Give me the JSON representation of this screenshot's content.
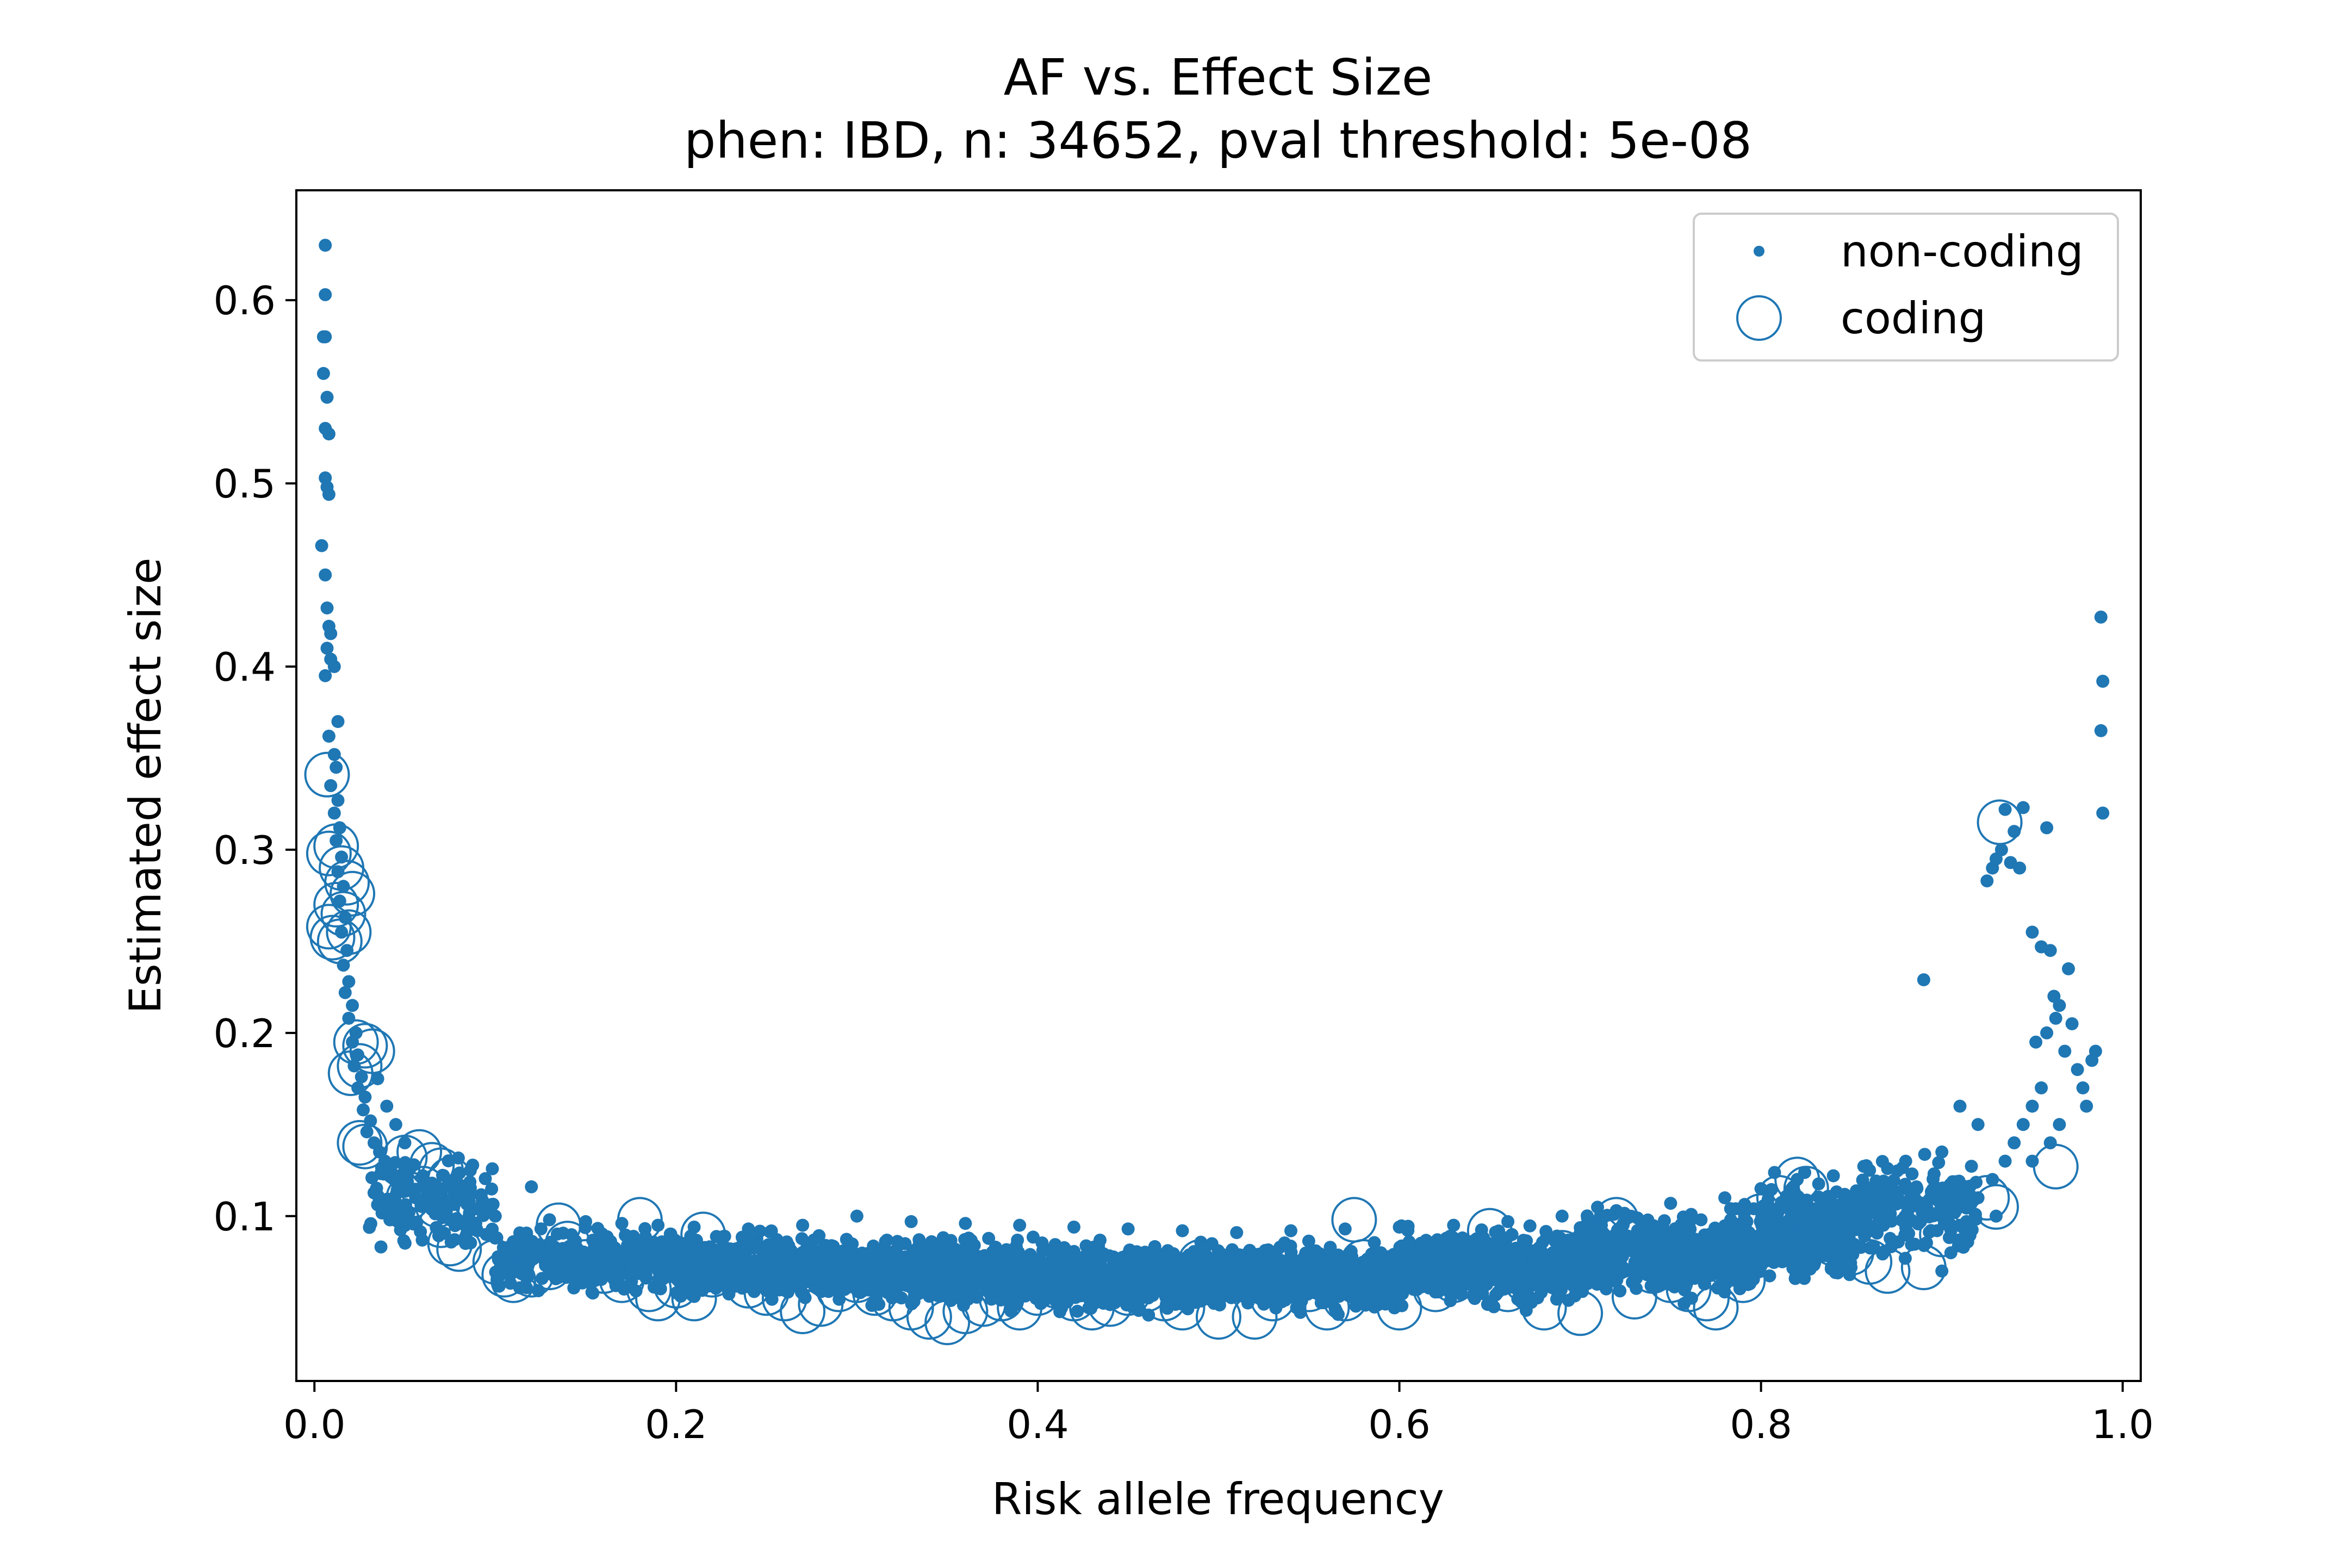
{
  "chart_data": {
    "type": "scatter",
    "title": "AF vs. Effect Size",
    "subtitle": "phen: IBD, n: 34652, pval threshold: 5e-08",
    "xlabel": "Risk allele frequency",
    "ylabel": "Estimated effect size",
    "xlim": [
      -0.01,
      1.01
    ],
    "ylim": [
      0.01,
      0.66
    ],
    "xticks": [
      0.0,
      0.2,
      0.4,
      0.6,
      0.8,
      1.0
    ],
    "xtick_labels": [
      "0.0",
      "0.2",
      "0.4",
      "0.6",
      "0.8",
      "1.0"
    ],
    "yticks": [
      0.1,
      0.2,
      0.3,
      0.4,
      0.5,
      0.6
    ],
    "ytick_labels": [
      "0.1",
      "0.2",
      "0.3",
      "0.4",
      "0.5",
      "0.6"
    ],
    "grid": false,
    "legend_position": "top-right",
    "color": "#1f77b4",
    "series": [
      {
        "name": "non-coding",
        "marker": "dot",
        "points": [
          [
            0.006,
            0.63
          ],
          [
            0.006,
            0.603
          ],
          [
            0.005,
            0.58
          ],
          [
            0.006,
            0.58
          ],
          [
            0.005,
            0.56
          ],
          [
            0.007,
            0.547
          ],
          [
            0.006,
            0.53
          ],
          [
            0.008,
            0.527
          ],
          [
            0.006,
            0.503
          ],
          [
            0.007,
            0.498
          ],
          [
            0.008,
            0.494
          ],
          [
            0.004,
            0.466
          ],
          [
            0.006,
            0.45
          ],
          [
            0.007,
            0.432
          ],
          [
            0.008,
            0.422
          ],
          [
            0.009,
            0.418
          ],
          [
            0.007,
            0.41
          ],
          [
            0.009,
            0.404
          ],
          [
            0.011,
            0.4
          ],
          [
            0.006,
            0.395
          ],
          [
            0.013,
            0.37
          ],
          [
            0.008,
            0.362
          ],
          [
            0.011,
            0.352
          ],
          [
            0.012,
            0.345
          ],
          [
            0.009,
            0.335
          ],
          [
            0.013,
            0.327
          ],
          [
            0.011,
            0.32
          ],
          [
            0.014,
            0.312
          ],
          [
            0.012,
            0.305
          ],
          [
            0.015,
            0.296
          ],
          [
            0.013,
            0.288
          ],
          [
            0.016,
            0.28
          ],
          [
            0.014,
            0.272
          ],
          [
            0.017,
            0.263
          ],
          [
            0.015,
            0.255
          ],
          [
            0.018,
            0.245
          ],
          [
            0.016,
            0.237
          ],
          [
            0.019,
            0.228
          ],
          [
            0.017,
            0.222
          ],
          [
            0.021,
            0.215
          ],
          [
            0.019,
            0.208
          ],
          [
            0.023,
            0.2
          ],
          [
            0.021,
            0.195
          ],
          [
            0.024,
            0.188
          ],
          [
            0.022,
            0.182
          ],
          [
            0.026,
            0.176
          ],
          [
            0.024,
            0.17
          ],
          [
            0.028,
            0.165
          ],
          [
            0.027,
            0.158
          ],
          [
            0.031,
            0.152
          ],
          [
            0.029,
            0.146
          ],
          [
            0.033,
            0.14
          ],
          [
            0.036,
            0.135
          ],
          [
            0.039,
            0.13
          ],
          [
            0.042,
            0.126
          ],
          [
            0.045,
            0.122
          ],
          [
            0.048,
            0.118
          ],
          [
            0.052,
            0.114
          ],
          [
            0.056,
            0.11
          ],
          [
            0.06,
            0.107
          ],
          [
            0.065,
            0.104
          ],
          [
            0.07,
            0.101
          ],
          [
            0.075,
            0.098
          ],
          [
            0.08,
            0.096
          ],
          [
            0.085,
            0.094
          ],
          [
            0.09,
            0.092
          ],
          [
            0.095,
            0.09
          ],
          [
            0.1,
            0.088
          ],
          [
            0.11,
            0.086
          ],
          [
            0.12,
            0.116
          ],
          [
            0.035,
            0.175
          ],
          [
            0.04,
            0.16
          ],
          [
            0.045,
            0.15
          ],
          [
            0.05,
            0.14
          ],
          [
            0.055,
            0.128
          ],
          [
            0.06,
            0.122
          ],
          [
            0.065,
            0.118
          ],
          [
            0.07,
            0.115
          ],
          [
            0.08,
            0.11
          ],
          [
            0.09,
            0.104
          ],
          [
            0.1,
            0.1
          ],
          [
            0.13,
            0.098
          ],
          [
            0.15,
            0.097
          ],
          [
            0.17,
            0.096
          ],
          [
            0.19,
            0.095
          ],
          [
            0.21,
            0.094
          ],
          [
            0.24,
            0.093
          ],
          [
            0.27,
            0.095
          ],
          [
            0.3,
            0.1
          ],
          [
            0.33,
            0.097
          ],
          [
            0.36,
            0.096
          ],
          [
            0.39,
            0.095
          ],
          [
            0.42,
            0.094
          ],
          [
            0.45,
            0.093
          ],
          [
            0.48,
            0.092
          ],
          [
            0.51,
            0.091
          ],
          [
            0.54,
            0.092
          ],
          [
            0.57,
            0.093
          ],
          [
            0.6,
            0.094
          ],
          [
            0.63,
            0.095
          ],
          [
            0.66,
            0.097
          ],
          [
            0.69,
            0.1
          ],
          [
            0.72,
            0.103
          ],
          [
            0.75,
            0.107
          ],
          [
            0.78,
            0.11
          ],
          [
            0.8,
            0.115
          ],
          [
            0.82,
            0.12
          ],
          [
            0.84,
            0.122
          ],
          [
            0.86,
            0.125
          ],
          [
            0.88,
            0.13
          ],
          [
            0.89,
            0.229
          ],
          [
            0.9,
            0.135
          ],
          [
            0.91,
            0.16
          ],
          [
            0.92,
            0.15
          ],
          [
            0.925,
            0.283
          ],
          [
            0.928,
            0.29
          ],
          [
            0.93,
            0.295
          ],
          [
            0.933,
            0.3
          ],
          [
            0.935,
            0.322
          ],
          [
            0.938,
            0.293
          ],
          [
            0.94,
            0.31
          ],
          [
            0.945,
            0.323
          ],
          [
            0.943,
            0.29
          ],
          [
            0.95,
            0.255
          ],
          [
            0.955,
            0.247
          ],
          [
            0.958,
            0.312
          ],
          [
            0.96,
            0.245
          ],
          [
            0.962,
            0.22
          ],
          [
            0.965,
            0.215
          ],
          [
            0.958,
            0.2
          ],
          [
            0.952,
            0.195
          ],
          [
            0.963,
            0.208
          ],
          [
            0.968,
            0.19
          ],
          [
            0.97,
            0.235
          ],
          [
            0.972,
            0.205
          ],
          [
            0.975,
            0.18
          ],
          [
            0.978,
            0.17
          ],
          [
            0.98,
            0.16
          ],
          [
            0.983,
            0.185
          ],
          [
            0.985,
            0.19
          ],
          [
            0.988,
            0.427
          ],
          [
            0.989,
            0.392
          ],
          [
            0.988,
            0.365
          ],
          [
            0.989,
            0.32
          ],
          [
            0.94,
            0.14
          ],
          [
            0.945,
            0.15
          ],
          [
            0.95,
            0.16
          ],
          [
            0.955,
            0.17
          ],
          [
            0.935,
            0.13
          ],
          [
            0.928,
            0.12
          ],
          [
            0.92,
            0.11
          ],
          [
            0.915,
            0.105
          ],
          [
            0.91,
            0.095
          ],
          [
            0.905,
            0.08
          ],
          [
            0.9,
            0.07
          ],
          [
            0.95,
            0.13
          ],
          [
            0.96,
            0.14
          ],
          [
            0.965,
            0.15
          ],
          [
            0.93,
            0.1
          ]
        ]
      },
      {
        "name": "coding",
        "marker": "open-circle",
        "points": [
          [
            0.007,
            0.341
          ],
          [
            0.008,
            0.298
          ],
          [
            0.012,
            0.302
          ],
          [
            0.015,
            0.29
          ],
          [
            0.018,
            0.282
          ],
          [
            0.021,
            0.276
          ],
          [
            0.012,
            0.27
          ],
          [
            0.016,
            0.265
          ],
          [
            0.008,
            0.258
          ],
          [
            0.01,
            0.252
          ],
          [
            0.014,
            0.25
          ],
          [
            0.019,
            0.255
          ],
          [
            0.023,
            0.195
          ],
          [
            0.028,
            0.193
          ],
          [
            0.032,
            0.19
          ],
          [
            0.025,
            0.182
          ],
          [
            0.02,
            0.178
          ],
          [
            0.025,
            0.14
          ],
          [
            0.028,
            0.138
          ],
          [
            0.05,
            0.132
          ],
          [
            0.058,
            0.135
          ],
          [
            0.065,
            0.128
          ],
          [
            0.07,
            0.125
          ],
          [
            0.075,
            0.12
          ],
          [
            0.06,
            0.115
          ],
          [
            0.052,
            0.11
          ],
          [
            0.068,
            0.106
          ],
          [
            0.07,
            0.095
          ],
          [
            0.075,
            0.085
          ],
          [
            0.08,
            0.082
          ],
          [
            0.1,
            0.075
          ],
          [
            0.105,
            0.068
          ],
          [
            0.11,
            0.065
          ],
          [
            0.12,
            0.068
          ],
          [
            0.13,
            0.072
          ],
          [
            0.135,
            0.095
          ],
          [
            0.14,
            0.085
          ],
          [
            0.15,
            0.075
          ],
          [
            0.16,
            0.07
          ],
          [
            0.17,
            0.065
          ],
          [
            0.18,
            0.098
          ],
          [
            0.185,
            0.06
          ],
          [
            0.19,
            0.055
          ],
          [
            0.2,
            0.062
          ],
          [
            0.21,
            0.055
          ],
          [
            0.215,
            0.09
          ],
          [
            0.22,
            0.068
          ],
          [
            0.24,
            0.062
          ],
          [
            0.25,
            0.058
          ],
          [
            0.26,
            0.055
          ],
          [
            0.27,
            0.048
          ],
          [
            0.28,
            0.052
          ],
          [
            0.29,
            0.06
          ],
          [
            0.3,
            0.065
          ],
          [
            0.31,
            0.058
          ],
          [
            0.32,
            0.055
          ],
          [
            0.33,
            0.05
          ],
          [
            0.34,
            0.045
          ],
          [
            0.35,
            0.042
          ],
          [
            0.36,
            0.048
          ],
          [
            0.37,
            0.052
          ],
          [
            0.38,
            0.055
          ],
          [
            0.39,
            0.05
          ],
          [
            0.4,
            0.058
          ],
          [
            0.41,
            0.062
          ],
          [
            0.42,
            0.055
          ],
          [
            0.43,
            0.05
          ],
          [
            0.44,
            0.052
          ],
          [
            0.45,
            0.058
          ],
          [
            0.46,
            0.06
          ],
          [
            0.47,
            0.055
          ],
          [
            0.48,
            0.05
          ],
          [
            0.49,
            0.075
          ],
          [
            0.5,
            0.045
          ],
          [
            0.505,
            0.068
          ],
          [
            0.51,
            0.07
          ],
          [
            0.52,
            0.045
          ],
          [
            0.53,
            0.055
          ],
          [
            0.54,
            0.065
          ],
          [
            0.55,
            0.06
          ],
          [
            0.56,
            0.05
          ],
          [
            0.57,
            0.055
          ],
          [
            0.575,
            0.098
          ],
          [
            0.58,
            0.075
          ],
          [
            0.59,
            0.065
          ],
          [
            0.6,
            0.05
          ],
          [
            0.61,
            0.07
          ],
          [
            0.62,
            0.06
          ],
          [
            0.63,
            0.065
          ],
          [
            0.64,
            0.07
          ],
          [
            0.65,
            0.092
          ],
          [
            0.66,
            0.06
          ],
          [
            0.67,
            0.065
          ],
          [
            0.68,
            0.05
          ],
          [
            0.69,
            0.08
          ],
          [
            0.7,
            0.047
          ],
          [
            0.71,
            0.088
          ],
          [
            0.72,
            0.098
          ],
          [
            0.73,
            0.056
          ],
          [
            0.74,
            0.07
          ],
          [
            0.75,
            0.065
          ],
          [
            0.76,
            0.06
          ],
          [
            0.77,
            0.055
          ],
          [
            0.775,
            0.05
          ],
          [
            0.78,
            0.075
          ],
          [
            0.79,
            0.065
          ],
          [
            0.8,
            0.1
          ],
          [
            0.81,
            0.11
          ],
          [
            0.82,
            0.12
          ],
          [
            0.825,
            0.115
          ],
          [
            0.83,
            0.095
          ],
          [
            0.84,
            0.085
          ],
          [
            0.85,
            0.08
          ],
          [
            0.86,
            0.075
          ],
          [
            0.87,
            0.07
          ],
          [
            0.89,
            0.072
          ],
          [
            0.9,
            0.09
          ],
          [
            0.925,
            0.11
          ],
          [
            0.932,
            0.315
          ],
          [
            0.93,
            0.105
          ],
          [
            0.963,
            0.127
          ]
        ]
      }
    ],
    "dense_band": [
      {
        "x0": 0.03,
        "x1": 0.1,
        "ymin": 0.075,
        "ymax": 0.14,
        "count": 140
      },
      {
        "x0": 0.1,
        "x1": 0.2,
        "ymin": 0.055,
        "ymax": 0.098,
        "count": 320
      },
      {
        "x0": 0.2,
        "x1": 0.3,
        "ymin": 0.048,
        "ymax": 0.095,
        "count": 520
      },
      {
        "x0": 0.3,
        "x1": 0.4,
        "ymin": 0.045,
        "ymax": 0.093,
        "count": 560
      },
      {
        "x0": 0.4,
        "x1": 0.5,
        "ymin": 0.043,
        "ymax": 0.09,
        "count": 560
      },
      {
        "x0": 0.5,
        "x1": 0.6,
        "ymin": 0.043,
        "ymax": 0.09,
        "count": 560
      },
      {
        "x0": 0.6,
        "x1": 0.7,
        "ymin": 0.047,
        "ymax": 0.098,
        "count": 560
      },
      {
        "x0": 0.7,
        "x1": 0.8,
        "ymin": 0.05,
        "ymax": 0.11,
        "count": 560
      },
      {
        "x0": 0.8,
        "x1": 0.85,
        "ymin": 0.058,
        "ymax": 0.125,
        "count": 320
      },
      {
        "x0": 0.85,
        "x1": 0.92,
        "ymin": 0.07,
        "ymax": 0.14,
        "count": 180
      }
    ]
  }
}
